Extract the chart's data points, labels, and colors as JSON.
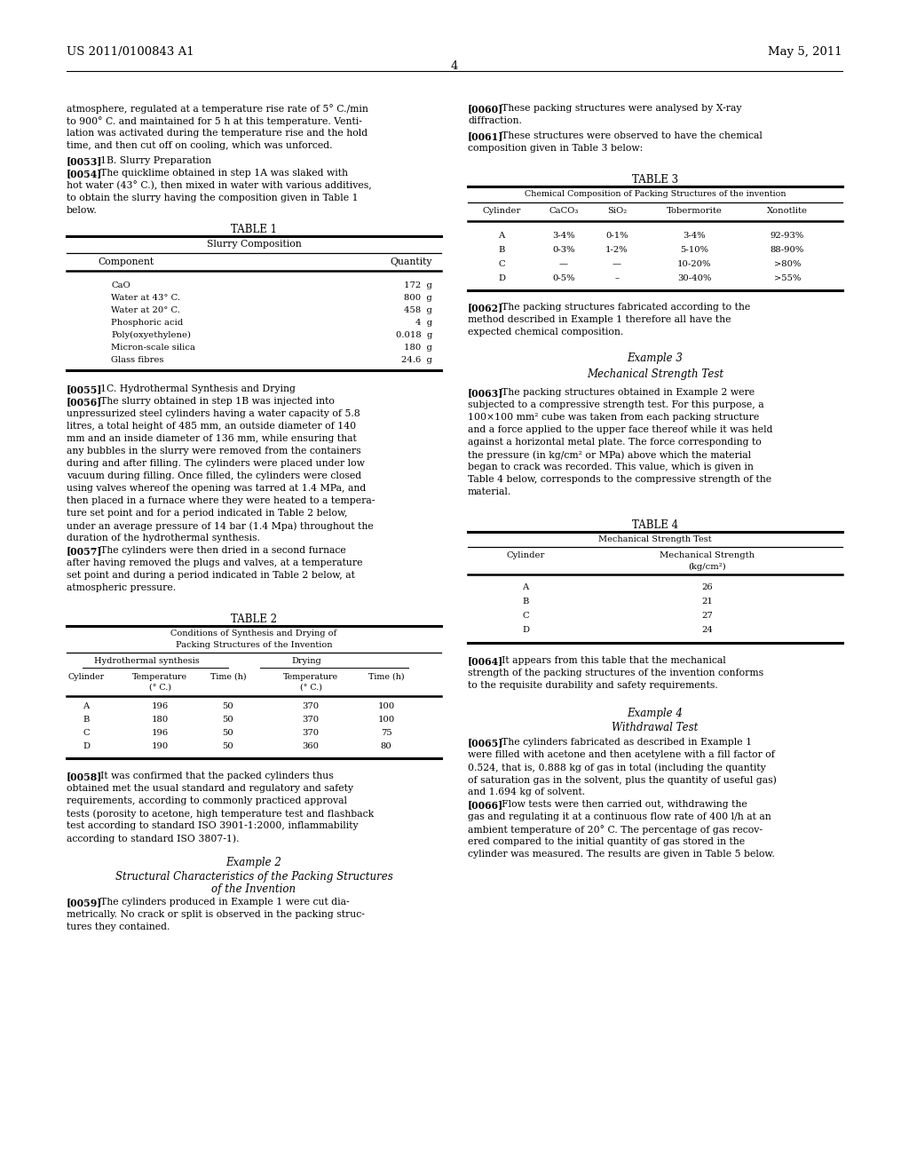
{
  "background_color": "#ffffff",
  "header_left": "US 2011/0100843 A1",
  "header_right": "May 5, 2011",
  "page_number": "4"
}
